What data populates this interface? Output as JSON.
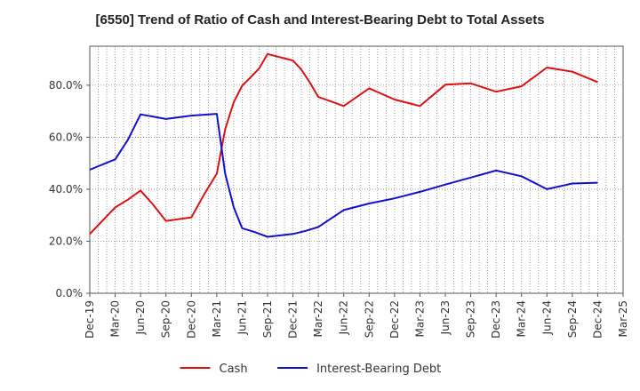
{
  "chart_data": {
    "type": "line",
    "title": "[6550]  Trend of Ratio of Cash and Interest-Bearing Debt to Total Assets",
    "xlabel": "",
    "ylabel": "",
    "ylim": [
      0,
      95
    ],
    "y_ticks": [
      0,
      20,
      40,
      60,
      80
    ],
    "y_tick_labels": [
      "0.0%",
      "20.0%",
      "40.0%",
      "60.0%",
      "80.0%"
    ],
    "x_tick_labels": [
      "Dec-19",
      "Mar-20",
      "Jun-20",
      "Sep-20",
      "Dec-20",
      "Mar-21",
      "Jun-21",
      "Sep-21",
      "Dec-21",
      "Mar-22",
      "Jun-22",
      "Sep-22",
      "Dec-22",
      "Mar-23",
      "Jun-23",
      "Sep-23",
      "Dec-23",
      "Mar-24",
      "Jun-24",
      "Sep-24",
      "Dec-24",
      "Mar-25"
    ],
    "x_minor_per_major": 3,
    "grid": true,
    "legend_position": "bottom",
    "series": [
      {
        "name": "Cash",
        "color": "#e01010",
        "points": [
          [
            0,
            22.8
          ],
          [
            1,
            33.0
          ],
          [
            1.5,
            36.0
          ],
          [
            2,
            39.5
          ],
          [
            2.5,
            34.0
          ],
          [
            3,
            27.8
          ],
          [
            4,
            29.2
          ],
          [
            4.5,
            38.0
          ],
          [
            5,
            46.0
          ],
          [
            5.33,
            63.0
          ],
          [
            5.67,
            73.5
          ],
          [
            6,
            79.8
          ],
          [
            6.33,
            83.0
          ],
          [
            6.67,
            86.5
          ],
          [
            7,
            92.0
          ],
          [
            8,
            89.5
          ],
          [
            8.33,
            86.0
          ],
          [
            8.67,
            81.0
          ],
          [
            9,
            75.5
          ],
          [
            10,
            72.0
          ],
          [
            11,
            78.8
          ],
          [
            12,
            74.5
          ],
          [
            13,
            72.0
          ],
          [
            14,
            80.2
          ],
          [
            15,
            80.7
          ],
          [
            16,
            77.5
          ],
          [
            17,
            79.6
          ],
          [
            18,
            86.8
          ],
          [
            19,
            85.2
          ],
          [
            20,
            81.2
          ]
        ]
      },
      {
        "name": "Interest-Bearing Debt",
        "color": "#1010d0",
        "points": [
          [
            0,
            47.5
          ],
          [
            1,
            51.5
          ],
          [
            1.5,
            59.0
          ],
          [
            2,
            68.8
          ],
          [
            3,
            67.0
          ],
          [
            4,
            68.3
          ],
          [
            5,
            69.0
          ],
          [
            5.33,
            46.0
          ],
          [
            5.67,
            33.0
          ],
          [
            6,
            25.0
          ],
          [
            6.5,
            23.5
          ],
          [
            7,
            21.7
          ],
          [
            8,
            22.8
          ],
          [
            8.5,
            24.0
          ],
          [
            9,
            25.5
          ],
          [
            10,
            32.0
          ],
          [
            11,
            34.5
          ],
          [
            12,
            36.5
          ],
          [
            13,
            39.0
          ],
          [
            14,
            41.8
          ],
          [
            15,
            44.5
          ],
          [
            16,
            47.2
          ],
          [
            17,
            45.0
          ],
          [
            18,
            40.0
          ],
          [
            19,
            42.2
          ],
          [
            20,
            42.5
          ]
        ]
      }
    ]
  }
}
